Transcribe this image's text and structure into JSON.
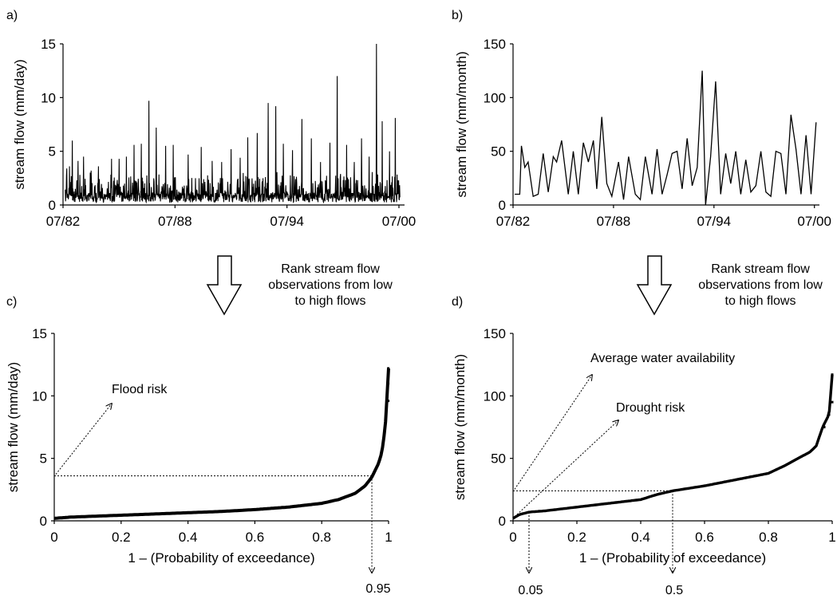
{
  "panels": {
    "a": {
      "label": "a)"
    },
    "b": {
      "label": "b)"
    },
    "c": {
      "label": "c)"
    },
    "d": {
      "label": "d)"
    }
  },
  "rank_note": {
    "line1": "Rank stream flow",
    "line2": "observations from low",
    "line3": "to high flows"
  },
  "annotations": {
    "flood_risk": "Flood risk",
    "avg_water": "Average water availability",
    "drought_risk": "Drought risk",
    "p095": "0.95",
    "p005": "0.05",
    "p05": "0.5"
  },
  "chart_data": [
    {
      "id": "a",
      "type": "line",
      "ylabel": "stream flow (mm/day)",
      "xlabel": "",
      "x_ticks": [
        "07/82",
        "07/88",
        "07/94",
        "07/00"
      ],
      "x_tick_positions": [
        1982.5,
        1988.5,
        1994.5,
        2000.5
      ],
      "xlim": [
        1982.5,
        2000.8
      ],
      "ylim": [
        0,
        15
      ],
      "y_ticks": [
        0,
        5,
        10,
        15
      ],
      "series": [
        {
          "values_note_peaks": true,
          "x": [
            1982.7,
            1982.85,
            1983.0,
            1983.3,
            1983.6,
            1984.0,
            1984.4,
            1985.1,
            1985.5,
            1985.9,
            1986.3,
            1986.7,
            1987.1,
            1987.5,
            1988.0,
            1988.4,
            1989.2,
            1989.9,
            1990.5,
            1991.0,
            1991.5,
            1992.0,
            1992.4,
            1992.9,
            1993.5,
            1993.9,
            1994.3,
            1994.8,
            1995.3,
            1995.8,
            1996.3,
            1996.8,
            1997.2,
            1997.7,
            1998.1,
            1998.5,
            1998.9,
            1999.3,
            1999.6,
            2000.0,
            2000.3
          ],
          "y": [
            3.4,
            3.6,
            6.0,
            4.1,
            4.5,
            3.2,
            3.6,
            4.3,
            4.3,
            4.5,
            5.6,
            5.7,
            9.7,
            7.2,
            5.5,
            5.6,
            4.7,
            5.4,
            4.1,
            4.0,
            5.2,
            4.4,
            6.3,
            6.7,
            9.5,
            9.2,
            5.7,
            5.1,
            8.0,
            6.2,
            4.0,
            5.8,
            12.0,
            5.6,
            4.0,
            6.2,
            4.5,
            15.0,
            7.8,
            5.0,
            8.1
          ]
        }
      ]
    },
    {
      "id": "b",
      "type": "line",
      "ylabel": "stream flow (mm/month)",
      "xlabel": "",
      "x_ticks": [
        "07/82",
        "07/88",
        "07/94",
        "07/00"
      ],
      "x_tick_positions": [
        1982.5,
        1988.5,
        1994.5,
        2000.5
      ],
      "xlim": [
        1982.5,
        2000.8
      ],
      "ylim": [
        0,
        150
      ],
      "y_ticks": [
        0,
        50,
        100,
        150
      ],
      "series": [
        {
          "x": [
            1982.6,
            1982.9,
            1983.0,
            1983.2,
            1983.4,
            1983.7,
            1984.0,
            1984.3,
            1984.6,
            1984.9,
            1985.1,
            1985.4,
            1985.8,
            1986.1,
            1986.4,
            1986.7,
            1987.0,
            1987.3,
            1987.5,
            1987.8,
            1988.1,
            1988.4,
            1988.8,
            1989.1,
            1989.4,
            1989.8,
            1990.1,
            1990.4,
            1990.8,
            1991.1,
            1991.4,
            1991.7,
            1992.0,
            1992.3,
            1992.6,
            1992.9,
            1993.2,
            1993.5,
            1993.8,
            1994.0,
            1994.3,
            1994.6,
            1994.9,
            1995.2,
            1995.5,
            1995.8,
            1996.1,
            1996.4,
            1996.7,
            1997.0,
            1997.3,
            1997.6,
            1997.9,
            1998.2,
            1998.5,
            1998.8,
            1999.1,
            1999.4,
            1999.7,
            2000.0,
            2000.3,
            2000.6
          ],
          "y": [
            10,
            10,
            55,
            35,
            40,
            8,
            10,
            48,
            12,
            45,
            40,
            60,
            10,
            50,
            10,
            58,
            40,
            60,
            15,
            82,
            20,
            8,
            40,
            5,
            45,
            10,
            5,
            45,
            10,
            52,
            10,
            28,
            48,
            50,
            15,
            62,
            18,
            35,
            125,
            0,
            45,
            115,
            10,
            48,
            20,
            50,
            10,
            42,
            12,
            18,
            50,
            12,
            8,
            50,
            48,
            10,
            84,
            52,
            10,
            65,
            10,
            77
          ]
        }
      ]
    },
    {
      "id": "c",
      "type": "scatter",
      "ylabel": "stream flow (mm/day)",
      "xlabel": "1 – (Probability of exceedance)",
      "x_ticks": [
        "0",
        "0.2",
        "0.4",
        "0.6",
        "0.8",
        "1"
      ],
      "x_tick_values": [
        0,
        0.2,
        0.4,
        0.6,
        0.8,
        1
      ],
      "y_ticks": [
        0,
        5,
        10,
        15
      ],
      "xlim": [
        0,
        1
      ],
      "ylim": [
        0,
        15
      ],
      "curve": {
        "x": [
          0.0,
          0.05,
          0.1,
          0.2,
          0.3,
          0.4,
          0.5,
          0.6,
          0.7,
          0.8,
          0.85,
          0.9,
          0.93,
          0.95,
          0.97,
          0.98,
          0.99,
          0.995,
          1.0
        ],
        "y": [
          0.2,
          0.3,
          0.35,
          0.45,
          0.55,
          0.65,
          0.75,
          0.9,
          1.1,
          1.4,
          1.7,
          2.2,
          2.8,
          3.5,
          4.6,
          5.5,
          7.5,
          9.8,
          12.2
        ]
      },
      "reference_lines": {
        "y_level": 3.6,
        "x_level": 0.95
      }
    },
    {
      "id": "d",
      "type": "scatter",
      "ylabel": "stream flow (mm/month)",
      "xlabel": "1 – (Probability of exceedance)",
      "x_ticks": [
        "0",
        "0.2",
        "0.4",
        "0.6",
        "0.8",
        "1"
      ],
      "x_tick_values": [
        0,
        0.2,
        0.4,
        0.6,
        0.8,
        1
      ],
      "y_ticks": [
        0,
        50,
        100,
        150
      ],
      "xlim": [
        0,
        1
      ],
      "ylim": [
        0,
        150
      ],
      "curve": {
        "x": [
          0.0,
          0.02,
          0.05,
          0.1,
          0.2,
          0.3,
          0.4,
          0.45,
          0.5,
          0.6,
          0.7,
          0.8,
          0.85,
          0.9,
          0.93,
          0.95,
          0.97,
          0.99,
          1.0
        ],
        "y": [
          2,
          5,
          7,
          8,
          11,
          14,
          17,
          21,
          24,
          28,
          33,
          38,
          44,
          51,
          55,
          60,
          75,
          85,
          117
        ]
      },
      "reference_lines": {
        "y_level": 24,
        "x_levels": [
          0.05,
          0.5
        ]
      }
    }
  ]
}
